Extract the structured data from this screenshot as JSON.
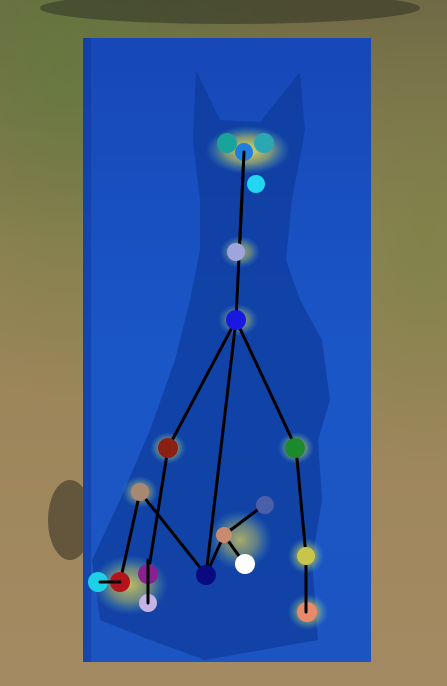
{
  "image": {
    "subject": "dog-pose-keypoint-overlay",
    "background": "grass-and-dirt-ground",
    "overlay_colormap": "jet-heatmap",
    "skeleton_color": "#000000",
    "keypoints": [
      {
        "name": "left-eye",
        "color": "#1aa39a"
      },
      {
        "name": "right-eye",
        "color": "#2aa7b3"
      },
      {
        "name": "nose",
        "color": "#1f7fe0"
      },
      {
        "name": "chin",
        "color": "#22d6f0"
      },
      {
        "name": "throat",
        "color": "#9ea5dd"
      },
      {
        "name": "withers",
        "color": "#1818e0"
      },
      {
        "name": "front-left-elbow",
        "color": "#8a1f14"
      },
      {
        "name": "front-right-elbow",
        "color": "#1b8a2a"
      },
      {
        "name": "front-left-knee",
        "color": "#a88872"
      },
      {
        "name": "front-left-paw",
        "color": "#8a1f8f"
      },
      {
        "name": "front-left-toe",
        "color": "#c6b3e6"
      },
      {
        "name": "rear-left-paw",
        "color": "#1fd0e4"
      },
      {
        "name": "rear-left-toe",
        "color": "#b3141c"
      },
      {
        "name": "tail-base",
        "color": "#0a0a80"
      },
      {
        "name": "hock",
        "color": "#4a5fa8"
      },
      {
        "name": "stifle",
        "color": "#c98b70"
      },
      {
        "name": "rear-right-paw",
        "color": "#ffffff"
      },
      {
        "name": "front-right-knee",
        "color": "#c7c64a"
      },
      {
        "name": "front-right-paw",
        "color": "#e88a6a"
      }
    ]
  }
}
